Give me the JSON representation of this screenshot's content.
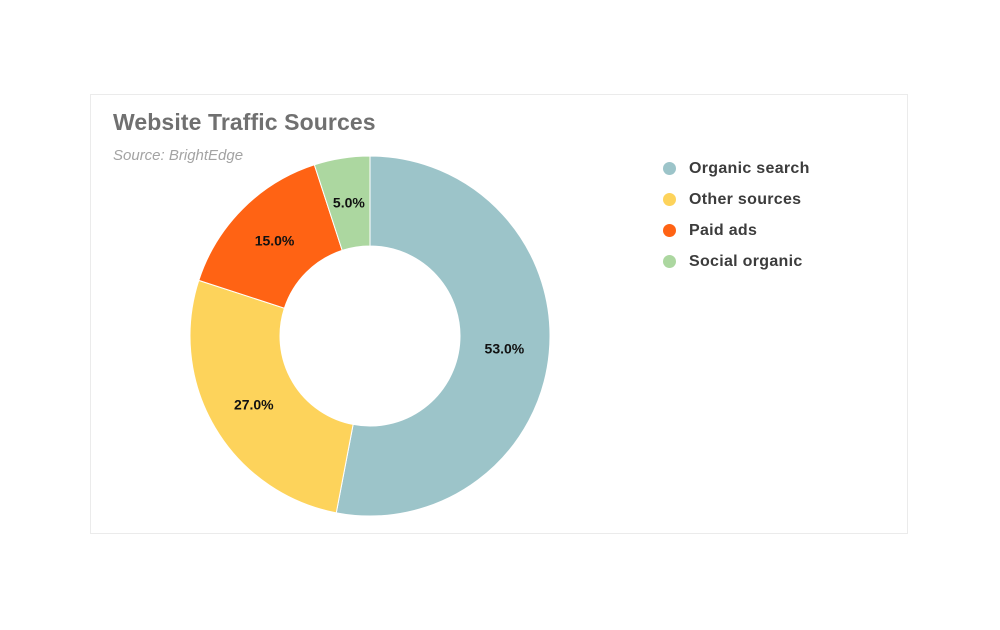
{
  "chart_data": {
    "type": "pie",
    "style": "donut",
    "title": "Website Traffic Sources",
    "subtitle": "Source: BrightEdge",
    "legend_position": "right",
    "categories": [
      "Organic search",
      "Other sources",
      "Paid ads",
      "Social organic"
    ],
    "values": [
      53.0,
      27.0,
      15.0,
      5.0
    ],
    "data_labels": [
      "53.0%",
      "27.0%",
      "15.0%",
      "5.0%"
    ],
    "colors": [
      "#9cc4c9",
      "#fdd35b",
      "#ff6314",
      "#acd7a0"
    ]
  }
}
